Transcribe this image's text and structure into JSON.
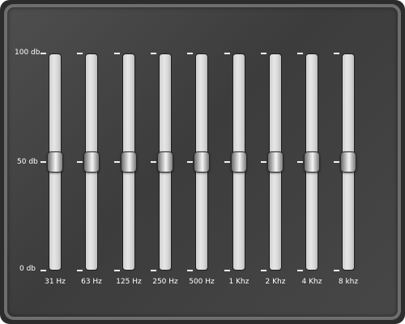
{
  "scale": {
    "max_label": "100 db",
    "mid_label": "50 db",
    "min_label": "0 db",
    "max_value": 100,
    "min_value": 0
  },
  "bands": [
    {
      "label": "31 Hz",
      "value_db": 50
    },
    {
      "label": "63 Hz",
      "value_db": 50
    },
    {
      "label": "125 Hz",
      "value_db": 50
    },
    {
      "label": "250 Hz",
      "value_db": 50
    },
    {
      "label": "500 Hz",
      "value_db": 50
    },
    {
      "label": "1 Khz",
      "value_db": 50
    },
    {
      "label": "2 Khz",
      "value_db": 50
    },
    {
      "label": "4 Khz",
      "value_db": 50
    },
    {
      "label": "8 khz",
      "value_db": 50
    }
  ],
  "colors": {
    "background": "#404040",
    "border": "#6e6e6e",
    "text": "#ffffff",
    "track": "#d8d8d8"
  }
}
